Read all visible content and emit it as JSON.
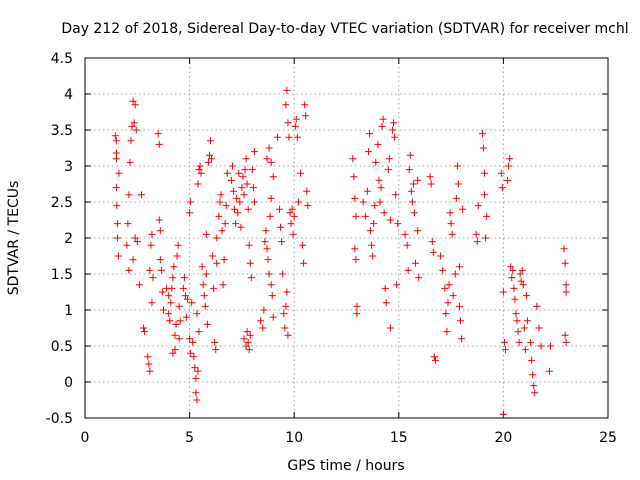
{
  "chart_data": {
    "type": "scatter",
    "title": "Day 212 of 2018, Sidereal Day-to-day VTEC variation (SDTVAR) for receiver mchl",
    "xlabel": "GPS time / hours",
    "ylabel": "SDTVAR / TECUs",
    "xlim": [
      0,
      25
    ],
    "ylim": [
      -0.5,
      4.5
    ],
    "xticks": [
      "0",
      "5",
      "10",
      "15",
      "20",
      "25"
    ],
    "yticks": [
      "-0.5",
      "0",
      "0.5",
      "1",
      "1.5",
      "2",
      "2.5",
      "3",
      "3.5",
      "4",
      "4.5"
    ],
    "grid": true,
    "marker": "plus",
    "color": "#ff0000",
    "series": [
      {
        "name": "SDTVAR",
        "points": [
          [
            1.45,
            3.42
          ],
          [
            1.5,
            3.35
          ],
          [
            1.5,
            3.1
          ],
          [
            1.5,
            2.7
          ],
          [
            1.52,
            2.45
          ],
          [
            1.55,
            2.2
          ],
          [
            1.55,
            2.0
          ],
          [
            1.6,
            1.75
          ],
          [
            1.62,
            2.9
          ],
          [
            1.5,
            3.18
          ],
          [
            2.0,
            1.9
          ],
          [
            2.05,
            2.2
          ],
          [
            2.1,
            2.6
          ],
          [
            2.15,
            3.05
          ],
          [
            2.2,
            3.35
          ],
          [
            2.25,
            3.55
          ],
          [
            2.3,
            3.9
          ],
          [
            2.35,
            3.6
          ],
          [
            2.4,
            3.85
          ],
          [
            2.45,
            3.5
          ],
          [
            2.1,
            1.55
          ],
          [
            2.3,
            1.7
          ],
          [
            2.4,
            2.0
          ],
          [
            2.5,
            1.95
          ],
          [
            2.6,
            1.35
          ],
          [
            2.7,
            2.6
          ],
          [
            2.8,
            0.75
          ],
          [
            2.85,
            0.7
          ],
          [
            3.0,
            0.35
          ],
          [
            3.05,
            0.25
          ],
          [
            3.1,
            0.15
          ],
          [
            3.1,
            1.55
          ],
          [
            3.15,
            1.9
          ],
          [
            3.2,
            2.05
          ],
          [
            3.25,
            1.45
          ],
          [
            3.2,
            1.1
          ],
          [
            3.5,
            3.45
          ],
          [
            3.55,
            3.3
          ],
          [
            3.55,
            2.25
          ],
          [
            3.6,
            2.1
          ],
          [
            3.6,
            1.7
          ],
          [
            3.65,
            1.55
          ],
          [
            3.7,
            1.25
          ],
          [
            3.75,
            1.0
          ],
          [
            3.9,
            1.3
          ],
          [
            4.0,
            1.2
          ],
          [
            4.0,
            0.95
          ],
          [
            4.05,
            0.85
          ],
          [
            4.1,
            1.1
          ],
          [
            4.15,
            1.3
          ],
          [
            4.2,
            1.45
          ],
          [
            4.25,
            1.6
          ],
          [
            4.3,
            0.65
          ],
          [
            4.35,
            0.8
          ],
          [
            4.2,
            0.4
          ],
          [
            4.3,
            0.45
          ],
          [
            4.4,
            1.75
          ],
          [
            4.45,
            1.9
          ],
          [
            4.5,
            1.05
          ],
          [
            4.55,
            0.85
          ],
          [
            4.5,
            0.6
          ],
          [
            4.7,
            1.3
          ],
          [
            4.75,
            1.45
          ],
          [
            4.8,
            1.2
          ],
          [
            4.85,
            0.9
          ],
          [
            4.9,
            1.15
          ],
          [
            5.0,
            2.35
          ],
          [
            5.05,
            2.5
          ],
          [
            5.0,
            0.6
          ],
          [
            5.05,
            0.4
          ],
          [
            5.1,
            1.1
          ],
          [
            5.15,
            0.55
          ],
          [
            5.2,
            0.35
          ],
          [
            5.25,
            0.2
          ],
          [
            5.3,
            0.05
          ],
          [
            5.3,
            -0.15
          ],
          [
            5.35,
            -0.25
          ],
          [
            5.4,
            0.15
          ],
          [
            5.35,
            0.95
          ],
          [
            5.45,
            0.7
          ],
          [
            5.4,
            2.75
          ],
          [
            5.45,
            2.95
          ],
          [
            5.5,
            3.0
          ],
          [
            5.55,
            2.9
          ],
          [
            5.6,
            1.6
          ],
          [
            5.65,
            1.35
          ],
          [
            5.7,
            1.2
          ],
          [
            5.75,
            1.05
          ],
          [
            5.8,
            1.5
          ],
          [
            5.85,
            0.8
          ],
          [
            5.8,
            2.05
          ],
          [
            5.9,
            3.05
          ],
          [
            5.95,
            3.15
          ],
          [
            6.0,
            3.35
          ],
          [
            6.05,
            3.1
          ],
          [
            6.1,
            1.75
          ],
          [
            6.15,
            1.3
          ],
          [
            6.2,
            0.55
          ],
          [
            6.25,
            0.45
          ],
          [
            6.3,
            1.65
          ],
          [
            6.3,
            2.0
          ],
          [
            6.4,
            2.3
          ],
          [
            6.45,
            2.5
          ],
          [
            6.5,
            2.6
          ],
          [
            6.55,
            2.1
          ],
          [
            6.6,
            1.35
          ],
          [
            6.65,
            1.7
          ],
          [
            6.7,
            2.2
          ],
          [
            6.75,
            2.45
          ],
          [
            6.8,
            2.9
          ],
          [
            7.0,
            2.8
          ],
          [
            7.05,
            3.0
          ],
          [
            7.1,
            2.65
          ],
          [
            7.15,
            2.4
          ],
          [
            7.2,
            2.2
          ],
          [
            7.25,
            2.55
          ],
          [
            7.3,
            2.35
          ],
          [
            7.35,
            2.9
          ],
          [
            7.4,
            2.5
          ],
          [
            7.45,
            2.15
          ],
          [
            7.5,
            2.7
          ],
          [
            7.55,
            2.85
          ],
          [
            7.6,
            2.6
          ],
          [
            7.65,
            2.95
          ],
          [
            7.7,
            3.1
          ],
          [
            7.75,
            2.75
          ],
          [
            7.8,
            2.4
          ],
          [
            7.85,
            1.9
          ],
          [
            7.9,
            1.65
          ],
          [
            7.95,
            1.45
          ],
          [
            7.6,
            0.6
          ],
          [
            7.7,
            0.5
          ],
          [
            7.75,
            0.7
          ],
          [
            7.8,
            0.55
          ],
          [
            7.85,
            0.45
          ],
          [
            7.9,
            0.65
          ],
          [
            8.0,
            2.95
          ],
          [
            8.05,
            2.7
          ],
          [
            8.1,
            2.5
          ],
          [
            8.1,
            3.2
          ],
          [
            8.4,
            0.85
          ],
          [
            8.5,
            0.75
          ],
          [
            8.55,
            1.0
          ],
          [
            8.6,
            1.95
          ],
          [
            8.65,
            2.1
          ],
          [
            8.7,
            1.85
          ],
          [
            8.75,
            1.7
          ],
          [
            8.8,
            1.5
          ],
          [
            8.85,
            2.3
          ],
          [
            8.9,
            2.55
          ],
          [
            8.7,
            3.1
          ],
          [
            8.8,
            3.25
          ],
          [
            8.9,
            3.05
          ],
          [
            9.0,
            2.85
          ],
          [
            8.9,
            1.35
          ],
          [
            8.95,
            1.2
          ],
          [
            9.0,
            0.9
          ],
          [
            9.2,
            3.4
          ],
          [
            9.3,
            2.4
          ],
          [
            9.35,
            2.15
          ],
          [
            9.4,
            1.95
          ],
          [
            9.45,
            1.5
          ],
          [
            9.5,
            0.95
          ],
          [
            9.55,
            0.75
          ],
          [
            9.6,
            1.05
          ],
          [
            9.65,
            1.25
          ],
          [
            9.7,
            0.65
          ],
          [
            9.6,
            3.85
          ],
          [
            9.65,
            4.05
          ],
          [
            9.7,
            3.6
          ],
          [
            9.75,
            3.4
          ],
          [
            9.8,
            2.35
          ],
          [
            9.85,
            2.2
          ],
          [
            9.9,
            2.4
          ],
          [
            9.95,
            2.05
          ],
          [
            10.0,
            2.3
          ],
          [
            10.05,
            3.55
          ],
          [
            10.1,
            3.65
          ],
          [
            10.15,
            3.4
          ],
          [
            10.2,
            2.5
          ],
          [
            10.3,
            2.9
          ],
          [
            10.4,
            1.9
          ],
          [
            10.45,
            1.65
          ],
          [
            10.5,
            3.85
          ],
          [
            10.55,
            3.7
          ],
          [
            10.6,
            2.65
          ],
          [
            10.65,
            2.45
          ],
          [
            12.8,
            3.1
          ],
          [
            12.85,
            2.85
          ],
          [
            12.9,
            2.55
          ],
          [
            12.9,
            1.85
          ],
          [
            12.95,
            1.7
          ],
          [
            13.0,
            1.05
          ],
          [
            13.0,
            0.95
          ],
          [
            12.95,
            2.3
          ],
          [
            13.3,
            2.5
          ],
          [
            13.4,
            2.3
          ],
          [
            13.5,
            2.65
          ],
          [
            13.55,
            3.2
          ],
          [
            13.6,
            3.45
          ],
          [
            13.65,
            2.1
          ],
          [
            13.7,
            1.9
          ],
          [
            13.75,
            1.75
          ],
          [
            13.8,
            2.2
          ],
          [
            13.85,
            2.45
          ],
          [
            13.9,
            3.05
          ],
          [
            14.0,
            3.3
          ],
          [
            14.05,
            2.8
          ],
          [
            14.1,
            2.5
          ],
          [
            14.15,
            2.7
          ],
          [
            14.2,
            3.55
          ],
          [
            14.25,
            3.65
          ],
          [
            14.3,
            2.35
          ],
          [
            14.35,
            1.3
          ],
          [
            14.4,
            1.1
          ],
          [
            14.5,
            2.95
          ],
          [
            14.55,
            3.1
          ],
          [
            14.6,
            2.25
          ],
          [
            14.7,
            3.5
          ],
          [
            14.75,
            3.6
          ],
          [
            14.8,
            3.4
          ],
          [
            14.85,
            2.6
          ],
          [
            14.9,
            1.35
          ],
          [
            14.6,
            0.75
          ],
          [
            14.95,
            2.2
          ],
          [
            15.3,
            2.05
          ],
          [
            15.4,
            1.9
          ],
          [
            15.45,
            1.55
          ],
          [
            15.5,
            2.95
          ],
          [
            15.55,
            3.15
          ],
          [
            15.6,
            2.65
          ],
          [
            15.65,
            2.5
          ],
          [
            15.7,
            2.75
          ],
          [
            15.75,
            2.35
          ],
          [
            15.8,
            1.65
          ],
          [
            15.9,
            2.1
          ],
          [
            15.95,
            1.45
          ],
          [
            15.9,
            2.8
          ],
          [
            16.5,
            2.85
          ],
          [
            16.55,
            2.75
          ],
          [
            16.6,
            1.95
          ],
          [
            16.65,
            1.8
          ],
          [
            16.7,
            0.35
          ],
          [
            16.75,
            0.3
          ],
          [
            17.0,
            1.75
          ],
          [
            17.1,
            1.55
          ],
          [
            17.2,
            1.3
          ],
          [
            17.25,
            0.95
          ],
          [
            17.3,
            0.7
          ],
          [
            17.35,
            1.1
          ],
          [
            17.4,
            1.35
          ],
          [
            17.45,
            2.35
          ],
          [
            17.5,
            2.2
          ],
          [
            17.55,
            2.05
          ],
          [
            17.6,
            1.2
          ],
          [
            17.7,
            1.5
          ],
          [
            17.75,
            2.55
          ],
          [
            17.8,
            3.0
          ],
          [
            17.85,
            2.75
          ],
          [
            17.9,
            1.05
          ],
          [
            17.95,
            0.85
          ],
          [
            18.0,
            0.6
          ],
          [
            17.9,
            1.6
          ],
          [
            18.05,
            2.4
          ],
          [
            18.7,
            2.05
          ],
          [
            18.75,
            1.95
          ],
          [
            18.8,
            2.45
          ],
          [
            19.0,
            3.45
          ],
          [
            19.05,
            3.25
          ],
          [
            19.1,
            2.9
          ],
          [
            19.1,
            2.6
          ],
          [
            19.2,
            2.3
          ],
          [
            19.15,
            2.0
          ],
          [
            19.9,
            2.9
          ],
          [
            19.95,
            2.7
          ],
          [
            20.0,
            1.25
          ],
          [
            20.05,
            0.55
          ],
          [
            20.1,
            0.45
          ],
          [
            20.2,
            2.8
          ],
          [
            20.25,
            3.0
          ],
          [
            20.3,
            3.1
          ],
          [
            20.0,
            -0.45
          ],
          [
            20.35,
            1.6
          ],
          [
            20.4,
            1.45
          ],
          [
            20.45,
            1.55
          ],
          [
            20.5,
            1.3
          ],
          [
            20.55,
            1.15
          ],
          [
            20.6,
            0.95
          ],
          [
            20.65,
            0.85
          ],
          [
            20.7,
            0.7
          ],
          [
            20.75,
            0.55
          ],
          [
            20.8,
            1.5
          ],
          [
            20.85,
            1.4
          ],
          [
            20.9,
            1.55
          ],
          [
            20.95,
            1.35
          ],
          [
            21.0,
            0.75
          ],
          [
            21.05,
            0.45
          ],
          [
            21.1,
            1.2
          ],
          [
            21.15,
            0.85
          ],
          [
            21.3,
            0.55
          ],
          [
            21.35,
            0.3
          ],
          [
            21.4,
            0.1
          ],
          [
            21.45,
            -0.05
          ],
          [
            21.5,
            -0.15
          ],
          [
            21.6,
            1.05
          ],
          [
            21.7,
            0.75
          ],
          [
            21.8,
            0.5
          ],
          [
            22.2,
            0.15
          ],
          [
            22.25,
            0.5
          ],
          [
            22.9,
            1.85
          ],
          [
            22.95,
            1.65
          ],
          [
            23.0,
            1.35
          ],
          [
            23.0,
            1.25
          ],
          [
            22.95,
            0.65
          ],
          [
            23.0,
            0.55
          ]
        ]
      }
    ]
  }
}
